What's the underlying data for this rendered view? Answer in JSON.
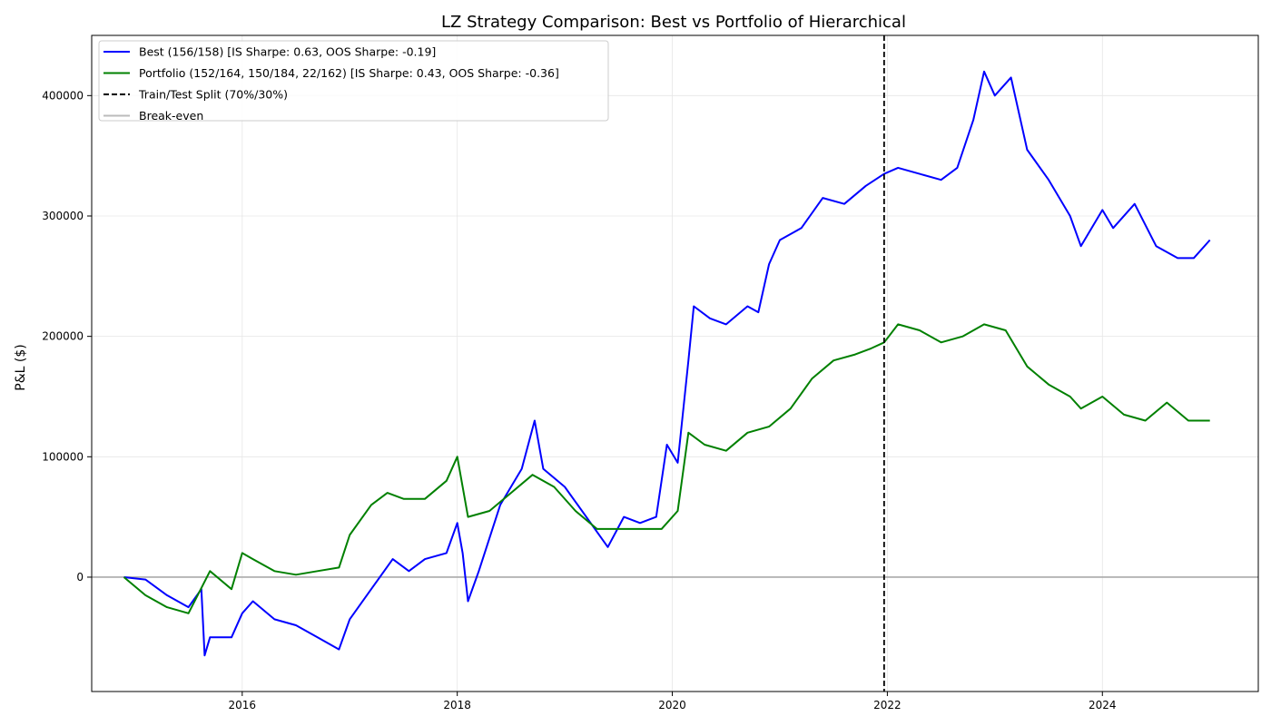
{
  "chart_data": {
    "type": "line",
    "title": "LZ Strategy Comparison: Best vs Portfolio of Hierarchical",
    "xlabel": "",
    "ylabel": "P&L ($)",
    "xlim": [
      2014.6,
      2025.45
    ],
    "ylim": [
      -95000,
      450000
    ],
    "x_ticks": [
      2016,
      2018,
      2020,
      2022,
      2024
    ],
    "y_ticks": [
      0,
      100000,
      200000,
      300000,
      400000
    ],
    "grid": true,
    "legend_position": "top-left",
    "train_test_split_x": 2021.97,
    "break_even_y": 0,
    "series": [
      {
        "name": "Best (156/158) [IS Sharpe: 0.63, OOS Sharpe: -0.19]",
        "color": "#0000ff",
        "x": [
          2014.9,
          2015.1,
          2015.3,
          2015.5,
          2015.62,
          2015.65,
          2015.7,
          2015.9,
          2016.0,
          2016.1,
          2016.3,
          2016.5,
          2016.7,
          2016.9,
          2017.0,
          2017.2,
          2017.4,
          2017.55,
          2017.7,
          2017.9,
          2018.0,
          2018.05,
          2018.1,
          2018.2,
          2018.4,
          2018.6,
          2018.72,
          2018.8,
          2019.0,
          2019.2,
          2019.4,
          2019.55,
          2019.7,
          2019.85,
          2019.95,
          2020.05,
          2020.15,
          2020.2,
          2020.35,
          2020.5,
          2020.7,
          2020.8,
          2020.9,
          2021.0,
          2021.2,
          2021.4,
          2021.6,
          2021.8,
          2021.97,
          2022.1,
          2022.3,
          2022.5,
          2022.65,
          2022.8,
          2022.9,
          2023.0,
          2023.15,
          2023.3,
          2023.5,
          2023.7,
          2023.8,
          2024.0,
          2024.1,
          2024.3,
          2024.5,
          2024.7,
          2024.85,
          2025.0
        ],
        "values": [
          0,
          -2000,
          -15000,
          -25000,
          -10000,
          -65000,
          -50000,
          -50000,
          -30000,
          -20000,
          -35000,
          -40000,
          -50000,
          -60000,
          -35000,
          -10000,
          15000,
          5000,
          15000,
          20000,
          45000,
          20000,
          -20000,
          5000,
          60000,
          90000,
          130000,
          90000,
          75000,
          50000,
          25000,
          50000,
          45000,
          50000,
          110000,
          95000,
          180000,
          225000,
          215000,
          210000,
          225000,
          220000,
          260000,
          280000,
          290000,
          315000,
          310000,
          325000,
          335000,
          340000,
          335000,
          330000,
          340000,
          380000,
          420000,
          400000,
          415000,
          355000,
          330000,
          300000,
          275000,
          305000,
          290000,
          310000,
          275000,
          265000,
          265000,
          280000
        ]
      },
      {
        "name": "Portfolio (152/164, 150/184, 22/162) [IS Sharpe: 0.43, OOS Sharpe: -0.36]",
        "color": "#008000",
        "x": [
          2014.9,
          2015.1,
          2015.3,
          2015.5,
          2015.7,
          2015.9,
          2016.0,
          2016.1,
          2016.3,
          2016.5,
          2016.7,
          2016.9,
          2017.0,
          2017.2,
          2017.35,
          2017.5,
          2017.7,
          2017.9,
          2018.0,
          2018.1,
          2018.3,
          2018.5,
          2018.7,
          2018.9,
          2019.1,
          2019.3,
          2019.5,
          2019.7,
          2019.9,
          2020.05,
          2020.15,
          2020.3,
          2020.5,
          2020.7,
          2020.9,
          2021.1,
          2021.3,
          2021.5,
          2021.7,
          2021.85,
          2021.97,
          2022.1,
          2022.3,
          2022.5,
          2022.7,
          2022.9,
          2023.1,
          2023.3,
          2023.5,
          2023.7,
          2023.8,
          2024.0,
          2024.2,
          2024.4,
          2024.6,
          2024.8,
          2025.0
        ],
        "values": [
          0,
          -15000,
          -25000,
          -30000,
          5000,
          -10000,
          20000,
          15000,
          5000,
          2000,
          5000,
          8000,
          35000,
          60000,
          70000,
          65000,
          65000,
          80000,
          100000,
          50000,
          55000,
          70000,
          85000,
          75000,
          55000,
          40000,
          40000,
          40000,
          40000,
          55000,
          120000,
          110000,
          105000,
          120000,
          125000,
          140000,
          165000,
          180000,
          185000,
          190000,
          195000,
          210000,
          205000,
          195000,
          200000,
          210000,
          205000,
          175000,
          160000,
          150000,
          140000,
          150000,
          135000,
          130000,
          145000,
          130000,
          130000
        ]
      }
    ],
    "legend": [
      {
        "label": "Best (156/158) [IS Sharpe: 0.63, OOS Sharpe: -0.19]",
        "color": "#0000ff",
        "style": "solid"
      },
      {
        "label": "Portfolio (152/164, 150/184, 22/162) [IS Sharpe: 0.43, OOS Sharpe: -0.36]",
        "color": "#008000",
        "style": "solid"
      },
      {
        "label": "Train/Test Split (70%/30%)",
        "color": "#000000",
        "style": "dashed"
      },
      {
        "label": "Break-even",
        "color": "#bbbbbb",
        "style": "solid"
      }
    ]
  }
}
